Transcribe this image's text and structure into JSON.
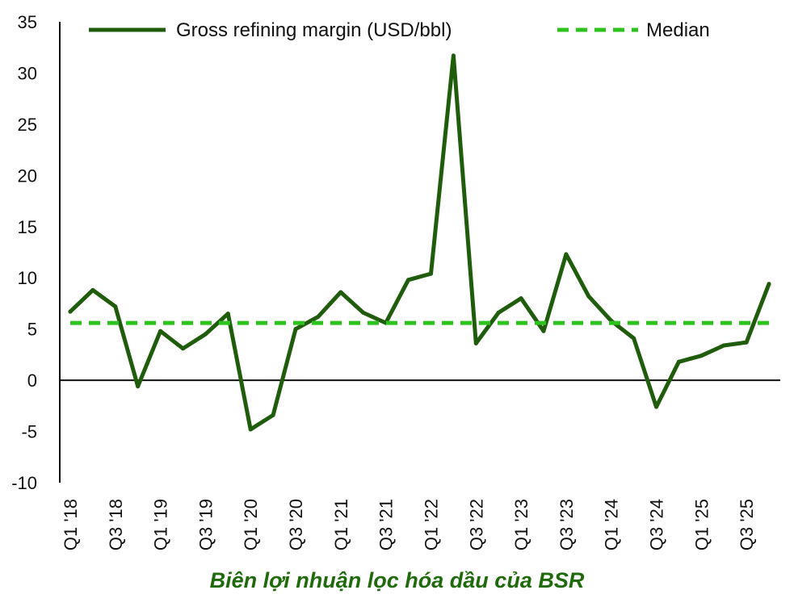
{
  "chart_data": {
    "type": "line",
    "ylim": [
      -10,
      35
    ],
    "yticks": [
      -10,
      -5,
      0,
      5,
      10,
      15,
      20,
      25,
      30,
      35
    ],
    "x": [
      "Q1 '18",
      "Q2 '18",
      "Q3 '18",
      "Q4 '18",
      "Q1 '19",
      "Q2 '19",
      "Q3 '19",
      "Q4 '19",
      "Q1 '20",
      "Q2 '20",
      "Q3 '20",
      "Q4 '20",
      "Q1 '21",
      "Q2 '21",
      "Q3 '21",
      "Q4 '21",
      "Q1 '22",
      "Q2 '22",
      "Q3 '22",
      "Q4 '22",
      "Q1 '23",
      "Q2 '23",
      "Q3 '23",
      "Q4 '23",
      "Q1 '24",
      "Q2 '24",
      "Q3 '24",
      "Q4 '24",
      "Q1 '25",
      "Q2 '25",
      "Q3 '25",
      "Q4 '25"
    ],
    "xtick_labels": [
      "Q1 '18",
      "Q3 '18",
      "Q1 '19",
      "Q3 '19",
      "Q1 '20",
      "Q3 '20",
      "Q1 '21",
      "Q3 '21",
      "Q1 '22",
      "Q3 '22",
      "Q1 '23",
      "Q3 '23",
      "Q1 '24",
      "Q3 '24",
      "Q1 '25",
      "Q3 '25"
    ],
    "series": [
      {
        "name": "Gross refining margin (USD/bbl)",
        "color": "#1f5c0c",
        "style": "solid",
        "values": [
          6.7,
          8.8,
          7.2,
          -0.6,
          4.8,
          3.1,
          4.5,
          6.5,
          -4.8,
          -3.4,
          5.0,
          6.2,
          8.6,
          6.6,
          5.6,
          9.8,
          10.4,
          31.7,
          3.6,
          6.6,
          8.0,
          4.8,
          12.3,
          8.2,
          5.8,
          4.1,
          -2.6,
          1.8,
          2.4,
          3.4,
          3.7,
          9.4
        ]
      },
      {
        "name": "Median",
        "color": "#2ec21e",
        "style": "dashed",
        "values": [
          5.6,
          5.6,
          5.6,
          5.6,
          5.6,
          5.6,
          5.6,
          5.6,
          5.6,
          5.6,
          5.6,
          5.6,
          5.6,
          5.6,
          5.6,
          5.6,
          5.6,
          5.6,
          5.6,
          5.6,
          5.6,
          5.6,
          5.6,
          5.6,
          5.6,
          5.6,
          5.6,
          5.6,
          5.6,
          5.6,
          5.6,
          5.6
        ]
      }
    ],
    "legend_position": "top",
    "grid": false,
    "caption": "Biên lợi nhuận lọc hóa dầu của BSR",
    "caption_color": "#1f6b0c"
  }
}
